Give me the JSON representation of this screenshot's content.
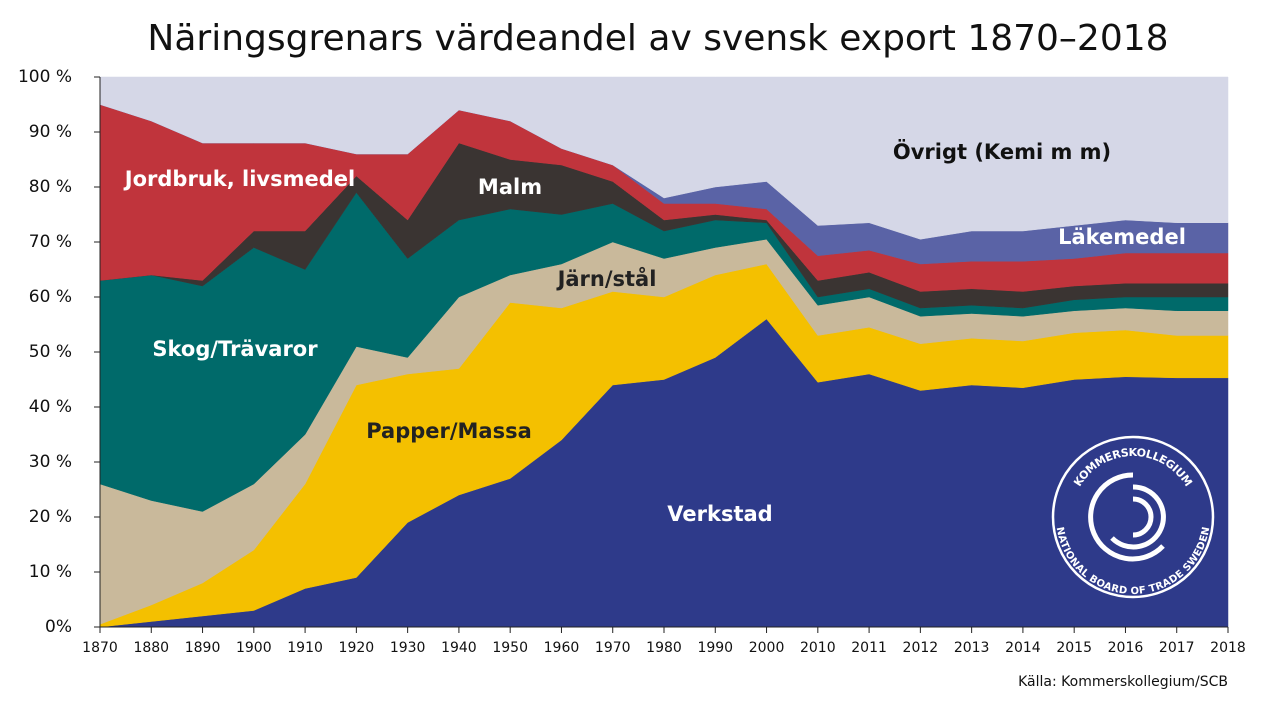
{
  "chart_data": {
    "type": "stacked-area",
    "title": "Näringsgrenars värdeandel av svensk export 1870–2018",
    "source": "Källa: Kommerskollegium/SCB",
    "logo": {
      "top_text": "KOMMERSKOLLEGIUM",
      "bottom_text": "NATIONAL BOARD OF TRADE SWEDEN"
    },
    "categories": [
      "1870",
      "1880",
      "1890",
      "1900",
      "1910",
      "1920",
      "1930",
      "1940",
      "1950",
      "1960",
      "1970",
      "1980",
      "1990",
      "2000",
      "2010",
      "2011",
      "2012",
      "2013",
      "2014",
      "2015",
      "2016",
      "2017",
      "2018"
    ],
    "ylim": [
      0,
      100
    ],
    "yticks": [
      {
        "value": 0,
        "label": "0%"
      },
      {
        "value": 10,
        "label": "10 %"
      },
      {
        "value": 20,
        "label": "20 %"
      },
      {
        "value": 30,
        "label": "30 %"
      },
      {
        "value": 40,
        "label": "40 %"
      },
      {
        "value": 50,
        "label": "50 %"
      },
      {
        "value": 60,
        "label": "60 %"
      },
      {
        "value": 70,
        "label": "70 %"
      },
      {
        "value": 80,
        "label": "80 %"
      },
      {
        "value": 90,
        "label": "90 %"
      },
      {
        "value": 100,
        "label": "100 %"
      }
    ],
    "series": [
      {
        "name": "Verkstad",
        "color": "#2e3a8a",
        "values": [
          0,
          1,
          2,
          3,
          7,
          9,
          19,
          24,
          27,
          34,
          44,
          45,
          49,
          56,
          44.5,
          46,
          43,
          44,
          43.5,
          45,
          45.5,
          45.3,
          45.3
        ]
      },
      {
        "name": "Papper/Massa",
        "color": "#f4c000",
        "values": [
          0.5,
          3,
          6,
          11,
          19,
          35,
          27,
          23,
          32,
          24,
          17,
          15,
          15,
          10,
          8.5,
          8.5,
          8.5,
          8.5,
          8.5,
          8.5,
          8.5,
          7.7,
          7.7
        ]
      },
      {
        "name": "Järn/stål",
        "color": "#c9b99b",
        "values": [
          25.5,
          19,
          13,
          12,
          9,
          7,
          3,
          13,
          5,
          8,
          9,
          7,
          5,
          4.5,
          5.5,
          5.5,
          5,
          4.5,
          4.5,
          4,
          4,
          4.5,
          4.5
        ]
      },
      {
        "name": "Skog/Trävaror",
        "color": "#006a6a",
        "values": [
          37,
          41,
          41,
          43,
          30,
          28,
          18,
          14,
          12,
          9,
          7,
          5,
          5,
          3,
          1.5,
          1.5,
          1.5,
          1.5,
          1.5,
          2,
          2,
          2.5,
          2.5
        ]
      },
      {
        "name": "Malm",
        "color": "#3a3432",
        "values": [
          0,
          0,
          1,
          3,
          7,
          3,
          7,
          14,
          9,
          9,
          4,
          2,
          1,
          0.5,
          3,
          3,
          3,
          3,
          3,
          2.5,
          2.5,
          2.5,
          2.5
        ]
      },
      {
        "name": "Jordbruk, livsmedel",
        "color": "#c0343c",
        "values": [
          32,
          28,
          25,
          16,
          16,
          4,
          12,
          6,
          7,
          3,
          3,
          3,
          2,
          2,
          4.5,
          4,
          5,
          5,
          5.5,
          5,
          5.5,
          5.5,
          5.5
        ]
      },
      {
        "name": "Läkemedel",
        "color": "#5a63a6",
        "values": [
          0,
          0,
          0,
          0,
          0,
          0,
          0,
          0,
          0,
          0,
          0,
          1,
          3,
          5,
          5.5,
          5,
          4.5,
          5.5,
          5.5,
          6,
          6,
          5.5,
          5.5
        ]
      },
      {
        "name": "Övrigt (Kemi m m)",
        "color": "#d5d7e7",
        "values": [
          5,
          8,
          12,
          12,
          12,
          14,
          14,
          6,
          8,
          13,
          16,
          22,
          20,
          19,
          27,
          26.5,
          29.5,
          28,
          28,
          27,
          26,
          26.5,
          26.5
        ]
      }
    ]
  }
}
